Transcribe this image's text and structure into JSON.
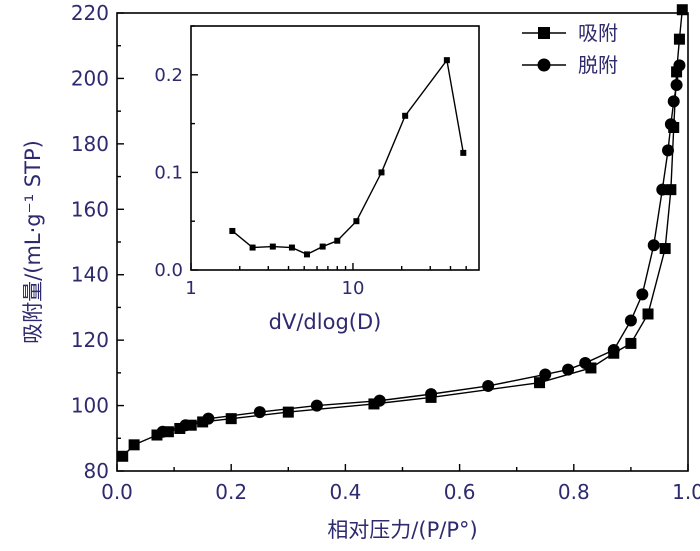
{
  "chart_data": [
    {
      "type": "line",
      "xlabel": "相对压力/(P/P°)",
      "ylabel": "吸附量/(mL·g⁻¹ STP)",
      "xlim": [
        0.0,
        1.0
      ],
      "ylim": [
        80,
        220
      ],
      "xticks": [
        "0.0",
        "0.2",
        "0.4",
        "0.6",
        "0.8",
        "1.0"
      ],
      "yticks": [
        "80",
        "100",
        "120",
        "140",
        "160",
        "180",
        "200",
        "220"
      ],
      "grid": false,
      "legend": "top-right",
      "series": [
        {
          "name": "吸附",
          "marker": "square",
          "x": [
            0.01,
            0.03,
            0.07,
            0.09,
            0.11,
            0.13,
            0.15,
            0.2,
            0.3,
            0.45,
            0.55,
            0.74,
            0.83,
            0.87,
            0.9,
            0.93,
            0.96,
            0.97,
            0.975,
            0.98,
            0.985,
            0.99
          ],
          "y": [
            84.5,
            88,
            91,
            92,
            93,
            94,
            95,
            96,
            98,
            100.5,
            102.5,
            107,
            111.5,
            116,
            119,
            128,
            148,
            166,
            185,
            202,
            212,
            221
          ]
        },
        {
          "name": "脱附",
          "marker": "circle",
          "x": [
            0.08,
            0.12,
            0.16,
            0.25,
            0.35,
            0.46,
            0.55,
            0.65,
            0.75,
            0.79,
            0.82,
            0.87,
            0.9,
            0.92,
            0.94,
            0.955,
            0.965,
            0.97,
            0.975,
            0.98,
            0.985
          ],
          "y": [
            92,
            94,
            96,
            98,
            100,
            101.5,
            103.5,
            106,
            109.5,
            111,
            113,
            117,
            126,
            134,
            149,
            166,
            178,
            186,
            193,
            198,
            204
          ]
        }
      ]
    },
    {
      "type": "line",
      "xlabel": "dV/dlog(D)",
      "ylabel": "",
      "xscale": "log",
      "xlim": [
        1,
        60
      ],
      "ylim": [
        0.0,
        0.25
      ],
      "xticks": [
        "1",
        "10"
      ],
      "yticks": [
        "0.0",
        "0.1",
        "0.2"
      ],
      "grid": false,
      "series": [
        {
          "name": "",
          "marker": "square",
          "x": [
            1.8,
            2.4,
            3.2,
            4.2,
            5.2,
            6.5,
            8.0,
            10.5,
            15.0,
            21.0,
            38.0,
            48.0
          ],
          "y": [
            0.04,
            0.023,
            0.024,
            0.023,
            0.016,
            0.024,
            0.03,
            0.05,
            0.1,
            0.158,
            0.215,
            0.12
          ]
        }
      ]
    }
  ]
}
